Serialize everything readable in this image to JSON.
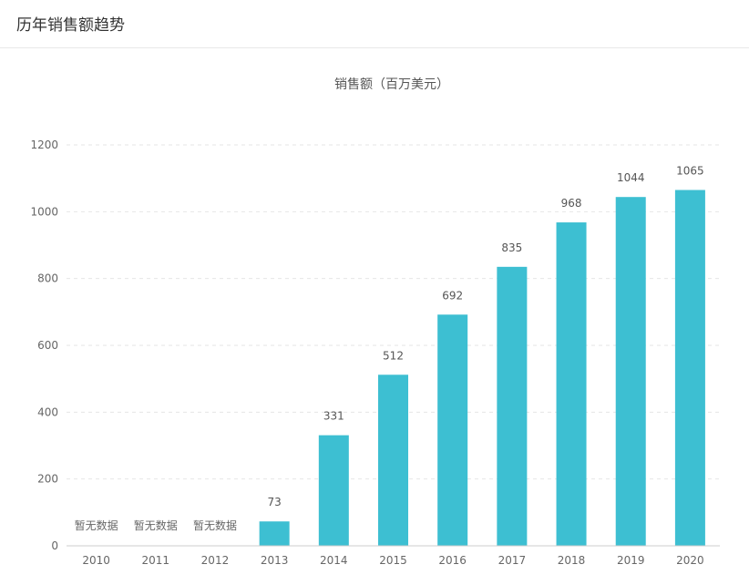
{
  "header": {
    "title": "历年销售额趋势"
  },
  "colors": {
    "bar": "#3dbfd2",
    "axis": "#cccccc",
    "grid": "#e6e6e6",
    "label": "#666666",
    "value_label": "#555555"
  },
  "chart_data": {
    "type": "bar",
    "title": "销售额（百万美元）",
    "categories": [
      "2010",
      "2011",
      "2012",
      "2013",
      "2014",
      "2015",
      "2016",
      "2017",
      "2018",
      "2019",
      "2020"
    ],
    "values": [
      null,
      null,
      null,
      73,
      331,
      512,
      692,
      835,
      968,
      1044,
      1065
    ],
    "no_data_label": "暂无数据",
    "ylim": [
      0,
      1200
    ],
    "yticks": [
      0,
      200,
      400,
      600,
      800,
      1000,
      1200
    ],
    "grid": true,
    "legend": false
  }
}
